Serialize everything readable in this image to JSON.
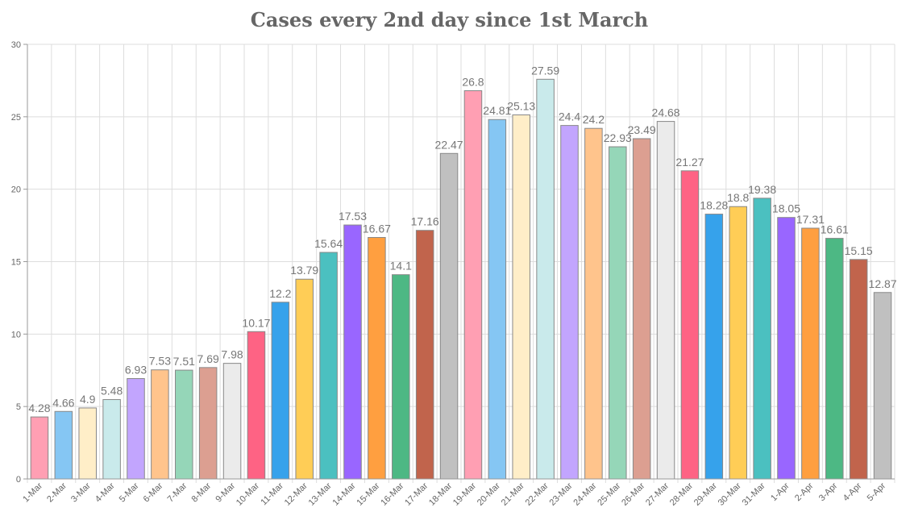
{
  "chart_data": {
    "type": "bar",
    "title": "Cases every 2nd day since 1st March",
    "xlabel": "",
    "ylabel": "",
    "ylim": [
      0,
      30
    ],
    "yticks": [
      0,
      5,
      10,
      15,
      20,
      25,
      30
    ],
    "grid": true,
    "legend": "none",
    "categories": [
      "1-Mar",
      "2-Mar",
      "3-Mar",
      "4-Mar",
      "5-Mar",
      "6-Mar",
      "7-Mar",
      "8-Mar",
      "9-Mar",
      "10-Mar",
      "11-Mar",
      "12-Mar",
      "13-Mar",
      "14-Mar",
      "15-Mar",
      "16-Mar",
      "17-Mar",
      "18-Mar",
      "19-Mar",
      "20-Mar",
      "21-Mar",
      "22-Mar",
      "23-Mar",
      "24-Mar",
      "25-Mar",
      "26-Mar",
      "27-Mar",
      "28-Mar",
      "29-Mar",
      "30-Mar",
      "31-Mar",
      "1-Apr",
      "2-Apr",
      "3-Apr",
      "4-Apr",
      "5-Apr"
    ],
    "values": [
      4.28,
      4.66,
      4.9,
      5.48,
      6.93,
      7.53,
      7.51,
      7.69,
      7.98,
      10.17,
      12.2,
      13.79,
      15.64,
      17.53,
      16.67,
      14.1,
      17.16,
      22.47,
      26.8,
      24.81,
      25.13,
      27.59,
      24.4,
      24.2,
      22.93,
      23.49,
      24.68,
      21.27,
      18.28,
      18.8,
      19.38,
      18.05,
      17.31,
      16.61,
      15.15,
      12.87
    ],
    "value_labels": [
      "4.28",
      "4.66",
      "4.9",
      "5.48",
      "6.93",
      "7.53",
      "7.51",
      "7.69",
      "7.98",
      "10.17",
      "12.2",
      "13.79",
      "15.64",
      "17.53",
      "16.67",
      "14.1",
      "17.16",
      "22.47",
      "26.8",
      "24.81",
      "25.13",
      "27.59",
      "24.4",
      "24.2",
      "22.93",
      "23.49",
      "24.68",
      "21.27",
      "18.28",
      "18.8",
      "19.38",
      "18.05",
      "17.31",
      "16.61",
      "15.15",
      "12.87"
    ],
    "colors": [
      "#ff9fb3",
      "#85c6f3",
      "#ffeec8",
      "#c9eaeb",
      "#c2a5fe",
      "#ffc48c",
      "#95d6b8",
      "#dc9f91",
      "#ebebeb",
      "#fe6384",
      "#36a2eb",
      "#ffcd56",
      "#4bc0c0",
      "#9966ff",
      "#ff9f40",
      "#4db884",
      "#c1644c",
      "#c0c0c0",
      "#ff9fb3",
      "#85c6f3",
      "#ffeec8",
      "#c9eaeb",
      "#c2a5fe",
      "#ffc48c",
      "#95d6b8",
      "#dc9f91",
      "#ebebeb",
      "#fe6384",
      "#36a2eb",
      "#ffcd56",
      "#4bc0c0",
      "#9966ff",
      "#ff9f40",
      "#4db884",
      "#c1644c",
      "#c0c0c0"
    ],
    "bar_border_color": "#888888"
  }
}
